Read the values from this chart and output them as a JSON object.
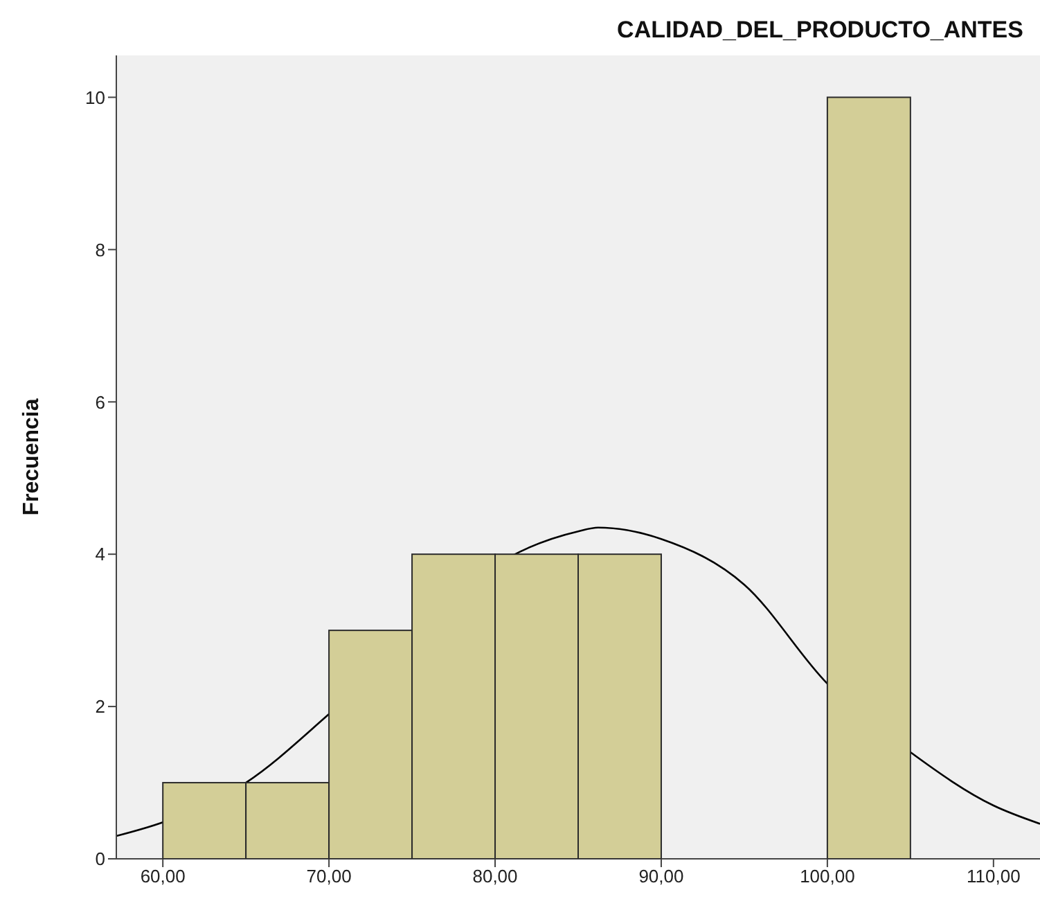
{
  "chart_data": {
    "type": "histogram",
    "title": "CALIDAD_DEL_PRODUCTO_ANTES",
    "ylabel": "Frecuencia",
    "bins": [
      60,
      65,
      70,
      75,
      80,
      85,
      90,
      95,
      100,
      105
    ],
    "values": [
      1,
      1,
      3,
      4,
      4,
      4,
      0,
      0,
      10
    ],
    "color": "#d3ce97",
    "series": [
      {
        "type": "line",
        "color": "#000000",
        "x": [
          57.2,
          60,
          65,
          70,
          75,
          80,
          85,
          86.2,
          90,
          95,
          100,
          105,
          110,
          112.8
        ],
        "values": [
          0.3,
          0.48,
          1.0,
          1.9,
          2.9,
          3.85,
          4.3,
          4.35,
          4.2,
          3.6,
          2.3,
          1.4,
          0.7,
          0.46
        ]
      }
    ],
    "marker": "none",
    "xlim": [
      57.2,
      112.8
    ],
    "xticks": [
      {
        "value": 60,
        "label": "60,00"
      },
      {
        "value": 70,
        "label": "70,00"
      },
      {
        "value": 80,
        "label": "80,00"
      },
      {
        "value": 90,
        "label": "90,00"
      },
      {
        "value": 100,
        "label": "100,00"
      },
      {
        "value": 110,
        "label": "110,00"
      }
    ],
    "ylim": [
      0,
      10.55
    ],
    "yticks": [
      0,
      2,
      4,
      6,
      8,
      10
    ]
  }
}
